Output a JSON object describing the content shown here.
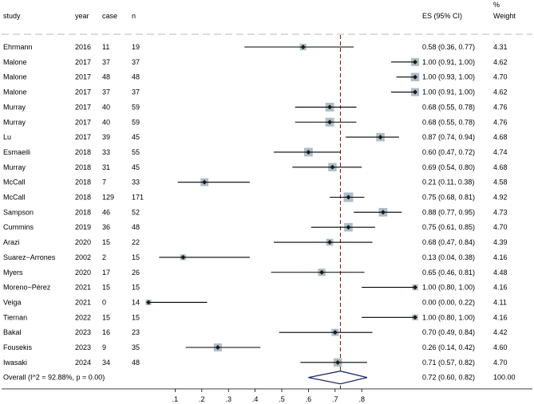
{
  "chart_data": {
    "type": "forest",
    "columns": {
      "study": "study",
      "year": "year",
      "case": "case",
      "n": "n",
      "es": "ES (95% CI)",
      "weight_top": "%",
      "weight": "Weight"
    },
    "rows": [
      {
        "study": "Ehrmann",
        "year": "2016",
        "case": "11",
        "n": "19",
        "es": 0.58,
        "lo": 0.36,
        "hi": 0.77,
        "es_text": "0.58 (0.36, 0.77)",
        "weight": "4.31"
      },
      {
        "study": "Malone",
        "year": "2017",
        "case": "37",
        "n": "37",
        "es": 1.0,
        "lo": 0.91,
        "hi": 1.0,
        "es_text": "1.00 (0.91, 1.00)",
        "weight": "4.62"
      },
      {
        "study": "Malone",
        "year": "2017",
        "case": "48",
        "n": "48",
        "es": 1.0,
        "lo": 0.93,
        "hi": 1.0,
        "es_text": "1.00 (0.93, 1.00)",
        "weight": "4.70"
      },
      {
        "study": "Malone",
        "year": "2017",
        "case": "37",
        "n": "37",
        "es": 1.0,
        "lo": 0.91,
        "hi": 1.0,
        "es_text": "1.00 (0.91, 1.00)",
        "weight": "4.62"
      },
      {
        "study": "Murray",
        "year": "2017",
        "case": "40",
        "n": "59",
        "es": 0.68,
        "lo": 0.55,
        "hi": 0.78,
        "es_text": "0.68 (0.55, 0.78)",
        "weight": "4.76"
      },
      {
        "study": "Murray",
        "year": "2017",
        "case": "40",
        "n": "59",
        "es": 0.68,
        "lo": 0.55,
        "hi": 0.78,
        "es_text": "0.68 (0.55, 0.78)",
        "weight": "4.76"
      },
      {
        "study": "Lu",
        "year": "2017",
        "case": "39",
        "n": "45",
        "es": 0.87,
        "lo": 0.74,
        "hi": 0.94,
        "es_text": "0.87 (0.74, 0.94)",
        "weight": "4.68"
      },
      {
        "study": "Esmaeili",
        "year": "2018",
        "case": "33",
        "n": "55",
        "es": 0.6,
        "lo": 0.47,
        "hi": 0.72,
        "es_text": "0.60 (0.47, 0.72)",
        "weight": "4.74"
      },
      {
        "study": "Murray",
        "year": "2018",
        "case": "31",
        "n": "45",
        "es": 0.69,
        "lo": 0.54,
        "hi": 0.8,
        "es_text": "0.69 (0.54, 0.80)",
        "weight": "4.68"
      },
      {
        "study": "McCall",
        "year": "2018",
        "case": "7",
        "n": "33",
        "es": 0.21,
        "lo": 0.11,
        "hi": 0.38,
        "es_text": "0.21 (0.11, 0.38)",
        "weight": "4.58"
      },
      {
        "study": "McCall",
        "year": "2018",
        "case": "129",
        "n": "171",
        "es": 0.75,
        "lo": 0.68,
        "hi": 0.81,
        "es_text": "0.75 (0.68, 0.81)",
        "weight": "4.92"
      },
      {
        "study": "Sampson",
        "year": "2018",
        "case": "46",
        "n": "52",
        "es": 0.88,
        "lo": 0.77,
        "hi": 0.95,
        "es_text": "0.88 (0.77, 0.95)",
        "weight": "4.73"
      },
      {
        "study": "Cummins",
        "year": "2019",
        "case": "36",
        "n": "48",
        "es": 0.75,
        "lo": 0.61,
        "hi": 0.85,
        "es_text": "0.75 (0.61, 0.85)",
        "weight": "4.70"
      },
      {
        "study": "Arazi",
        "year": "2020",
        "case": "15",
        "n": "22",
        "es": 0.68,
        "lo": 0.47,
        "hi": 0.84,
        "es_text": "0.68 (0.47, 0.84)",
        "weight": "4.39"
      },
      {
        "study": "Suarez−Arrones",
        "year": "2002",
        "case": "2",
        "n": "15",
        "es": 0.13,
        "lo": 0.04,
        "hi": 0.38,
        "es_text": "0.13 (0.04, 0.38)",
        "weight": "4.16"
      },
      {
        "study": "Myers",
        "year": "2020",
        "case": "17",
        "n": "26",
        "es": 0.65,
        "lo": 0.46,
        "hi": 0.81,
        "es_text": "0.65 (0.46, 0.81)",
        "weight": "4.48"
      },
      {
        "study": "Moreno−Pérez",
        "year": "2021",
        "case": "15",
        "n": "15",
        "es": 1.0,
        "lo": 0.8,
        "hi": 1.0,
        "es_text": "1.00 (0.80, 1.00)",
        "weight": "4.16"
      },
      {
        "study": "Veiga",
        "year": "2021",
        "case": "0",
        "n": "14",
        "es": 0.0,
        "lo": 0.0,
        "hi": 0.22,
        "es_text": "0.00 (0.00, 0.22)",
        "weight": "4.11"
      },
      {
        "study": "Tiernan",
        "year": "2022",
        "case": "15",
        "n": "15",
        "es": 1.0,
        "lo": 0.8,
        "hi": 1.0,
        "es_text": "1.00 (0.80, 1.00)",
        "weight": "4.16"
      },
      {
        "study": "Bakal",
        "year": "2023",
        "case": "16",
        "n": "23",
        "es": 0.7,
        "lo": 0.49,
        "hi": 0.84,
        "es_text": "0.70 (0.49, 0.84)",
        "weight": "4.42"
      },
      {
        "study": "Fousekis",
        "year": "2023",
        "case": "9",
        "n": "35",
        "es": 0.26,
        "lo": 0.14,
        "hi": 0.42,
        "es_text": "0.26 (0.14, 0.42)",
        "weight": "4.60"
      },
      {
        "study": "Iwasaki",
        "year": "2024",
        "case": "34",
        "n": "48",
        "es": 0.71,
        "lo": 0.57,
        "hi": 0.82,
        "es_text": "0.71 (0.57, 0.82)",
        "weight": "4.70"
      }
    ],
    "overall": {
      "label": "Overall  (I^2 = 92.88%, p = 0.00)",
      "es": 0.72,
      "lo": 0.6,
      "hi": 0.82,
      "es_text": "0.72 (0.60, 0.82)",
      "weight": "100.00"
    },
    "xaxis": {
      "min": 0,
      "max": 1,
      "ticks": [
        0.1,
        0.2,
        0.3,
        0.4,
        0.5,
        0.6,
        0.7,
        0.8
      ],
      "tick_labels": [
        ".1",
        ".2",
        ".3",
        ".4",
        ".5",
        ".6",
        ".7",
        ".8"
      ]
    },
    "reference_line": 0.72,
    "colors": {
      "ci_line": "#000000",
      "point": "#1a1a1a",
      "weight_box": "#9fb3bd",
      "reference_line": "#8b1a1a",
      "diamond": "#1f2a6b",
      "dashed_rule": "#c8c8c8"
    }
  }
}
